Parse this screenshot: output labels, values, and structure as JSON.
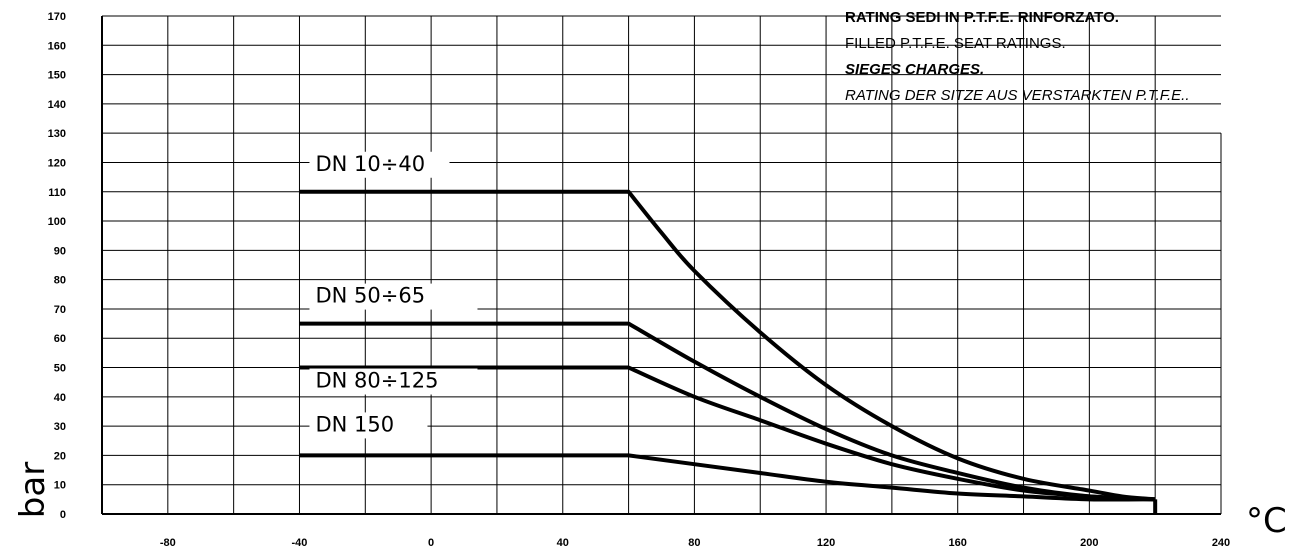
{
  "chart_data": {
    "type": "line",
    "title_lines": [
      "RATING SEDI IN P.T.F.E. RINFORZATO.",
      "FILLED P.T.F.E. SEAT RATINGS.",
      "SIEGES CHARGES.",
      "RATING DER SITZE AUS VERSTARKTEN P.T.F.E.."
    ],
    "title_styles": [
      "bold",
      "normal",
      "bold-italic",
      "italic"
    ],
    "xlabel": "°C",
    "ylabel": "bar",
    "xlim": [
      -100,
      240
    ],
    "ylim": [
      0,
      170
    ],
    "x_ticks": [
      -80,
      -40,
      0,
      40,
      80,
      120,
      160,
      200,
      240
    ],
    "x_tick_labels": [
      "-80",
      "-40",
      "0",
      "40",
      "80",
      "120",
      "160",
      "200",
      "240"
    ],
    "y_ticks": [
      0,
      10,
      20,
      30,
      40,
      50,
      60,
      70,
      80,
      90,
      100,
      110,
      120,
      130,
      140,
      150,
      160,
      170
    ],
    "y_tick_labels": [
      "0",
      "10",
      "20",
      "30",
      "40",
      "50",
      "60",
      "70",
      "80",
      "90",
      "100",
      "110",
      "120",
      "130",
      "140",
      "150",
      "160",
      "170"
    ],
    "grid": true,
    "grid_x_step": 20,
    "series": [
      {
        "name": "DN 10÷40",
        "points": [
          [
            -40,
            110
          ],
          [
            60,
            110
          ],
          [
            70,
            96
          ],
          [
            80,
            83
          ],
          [
            100,
            62
          ],
          [
            120,
            44
          ],
          [
            140,
            30
          ],
          [
            160,
            19
          ],
          [
            180,
            12
          ],
          [
            200,
            8
          ],
          [
            210,
            6
          ],
          [
            220,
            5
          ]
        ]
      },
      {
        "name": "DN 50÷65",
        "points": [
          [
            -40,
            65
          ],
          [
            60,
            65
          ],
          [
            80,
            52
          ],
          [
            100,
            40
          ],
          [
            120,
            29
          ],
          [
            140,
            20
          ],
          [
            160,
            14
          ],
          [
            180,
            9
          ],
          [
            200,
            6
          ],
          [
            220,
            5
          ]
        ]
      },
      {
        "name": "DN 80÷125",
        "points": [
          [
            -40,
            50
          ],
          [
            60,
            50
          ],
          [
            80,
            40
          ],
          [
            100,
            32
          ],
          [
            120,
            24
          ],
          [
            140,
            17
          ],
          [
            160,
            12
          ],
          [
            180,
            8
          ],
          [
            200,
            6
          ],
          [
            220,
            5
          ]
        ]
      },
      {
        "name": "DN 150",
        "points": [
          [
            -40,
            20
          ],
          [
            60,
            20
          ],
          [
            80,
            17
          ],
          [
            100,
            14
          ],
          [
            120,
            11
          ],
          [
            140,
            9
          ],
          [
            160,
            7
          ],
          [
            180,
            6
          ],
          [
            200,
            5
          ],
          [
            220,
            5
          ]
        ]
      }
    ],
    "end_drop": {
      "x": 220,
      "from": 5,
      "to": 0
    }
  }
}
